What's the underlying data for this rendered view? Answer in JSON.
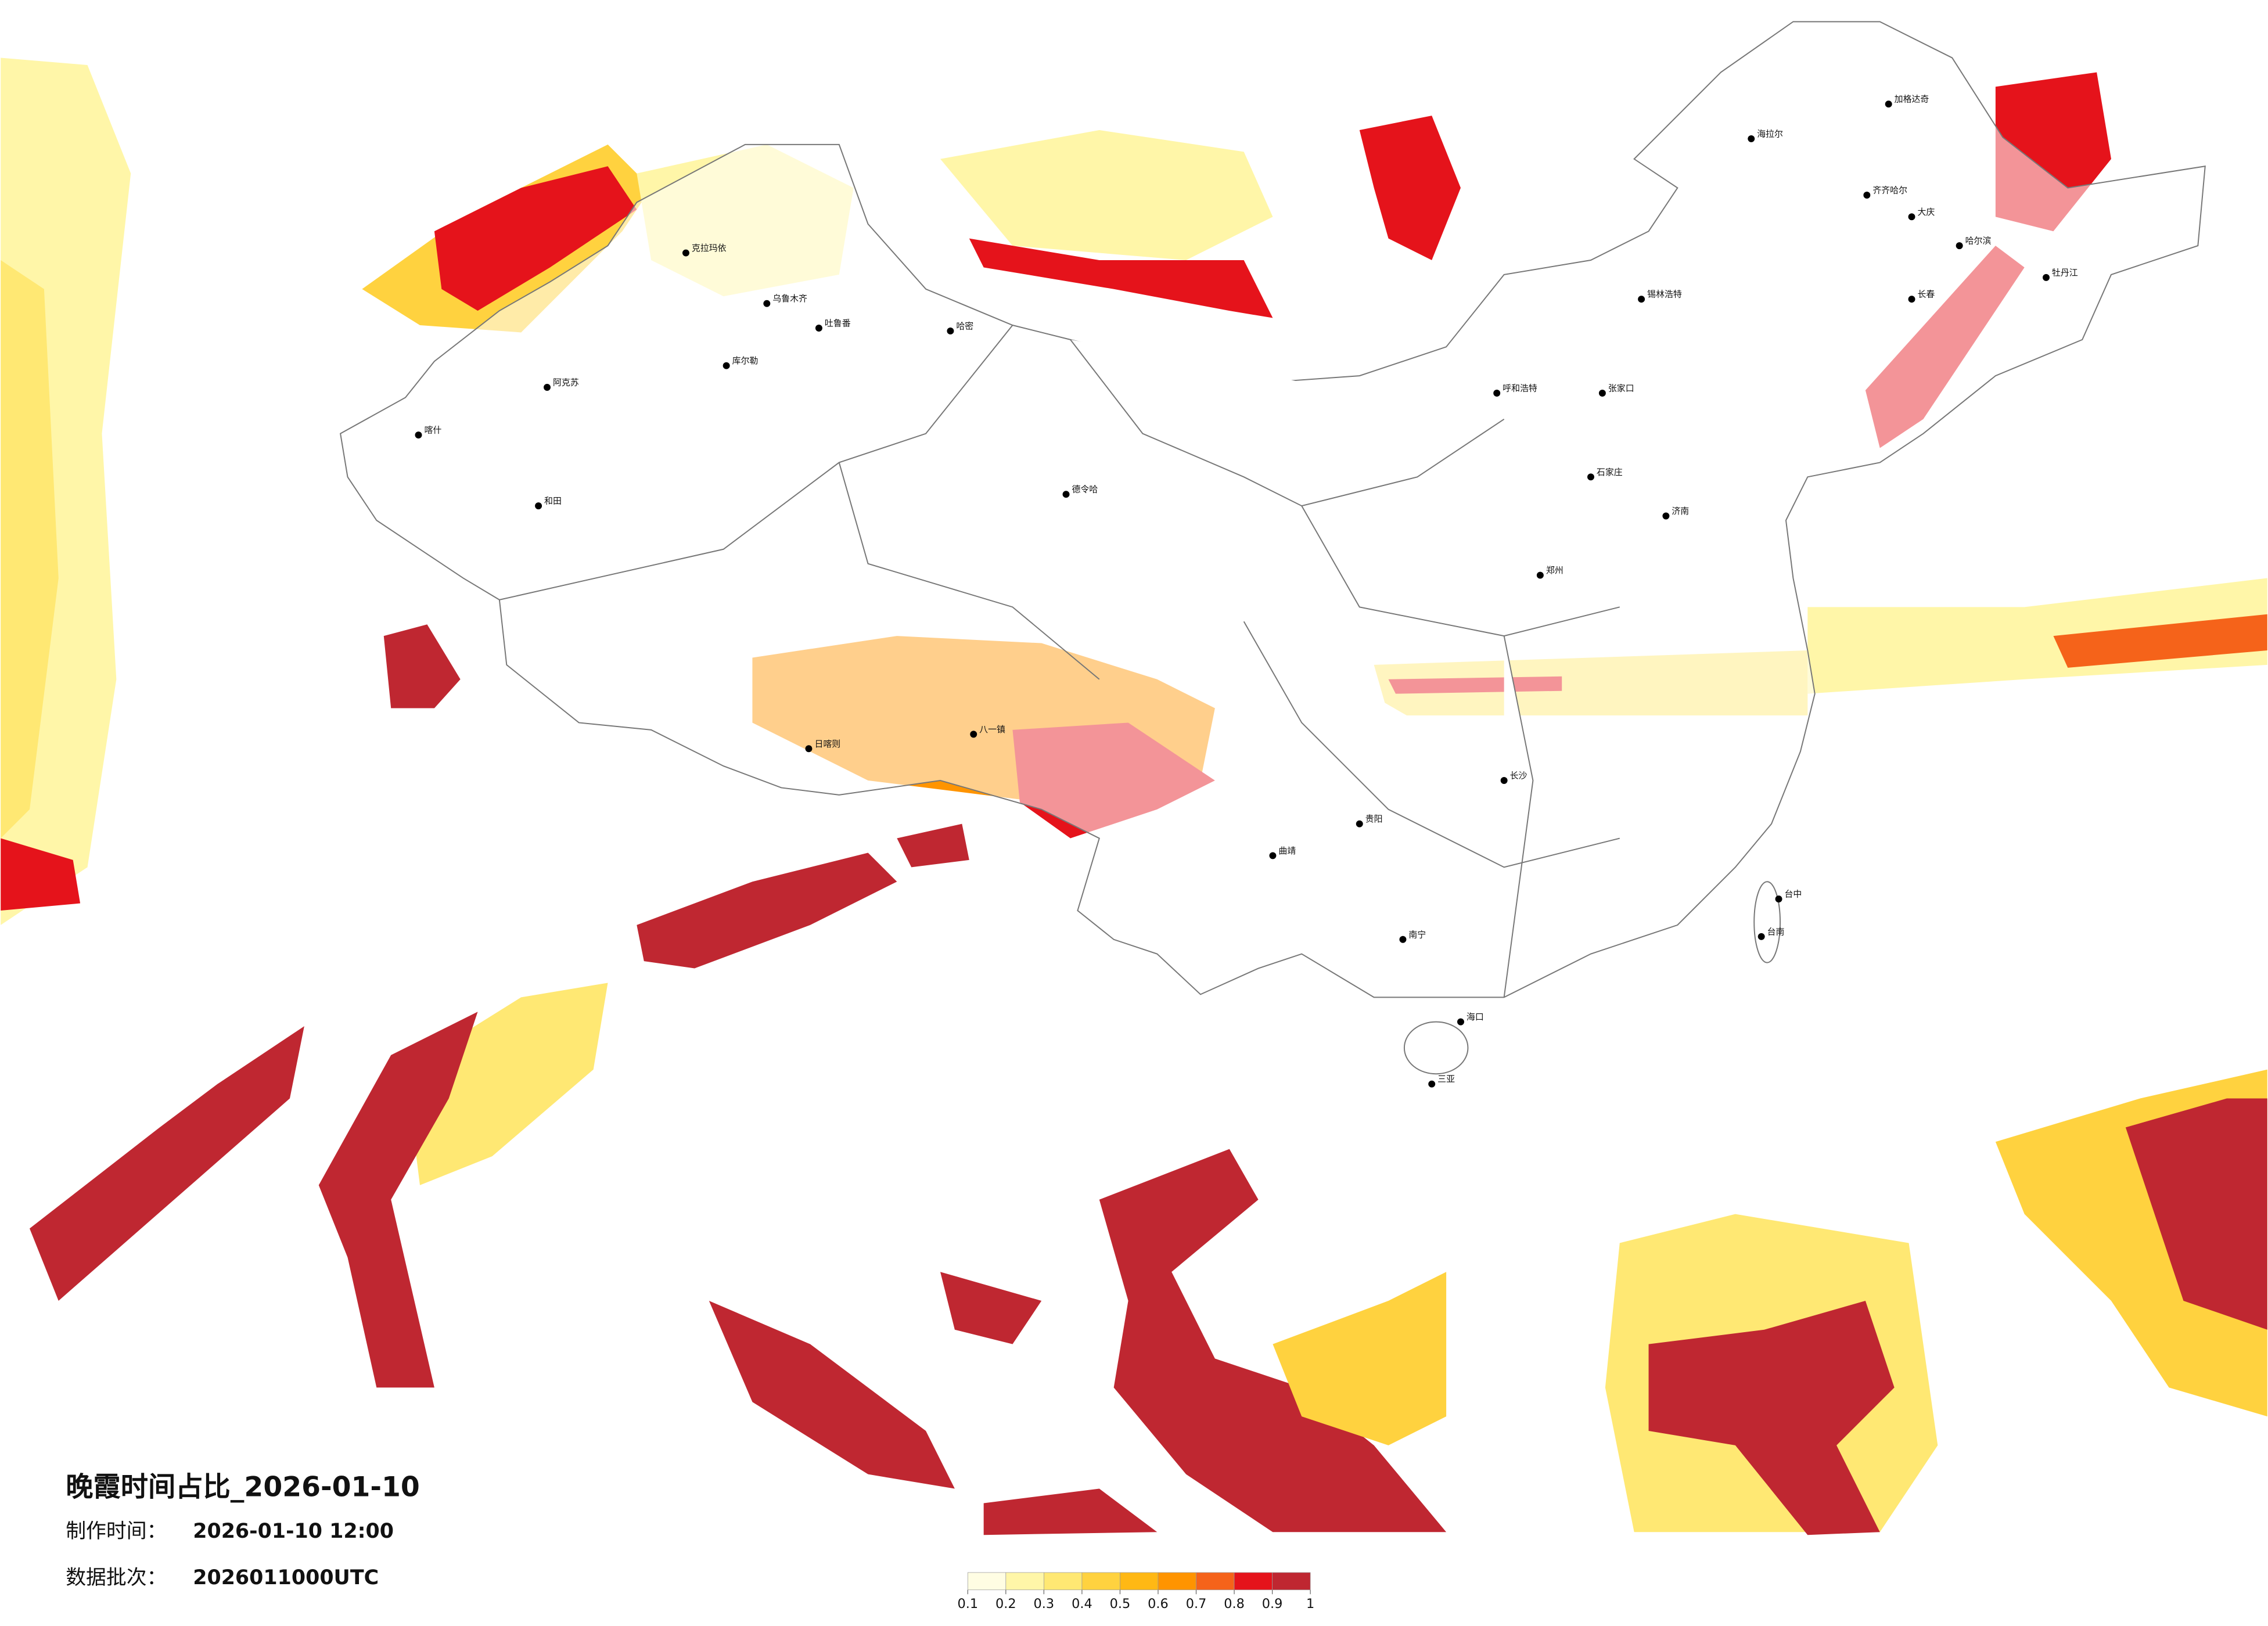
{
  "title": "晚霞时间占比_2026-01-10",
  "production_time": {
    "label": "制作时间：",
    "value": "2026-01-10 12:00"
  },
  "data_batch": {
    "label": "数据批次：",
    "value": "2026011000UTC"
  },
  "colorbar": {
    "ticks": [
      0.1,
      0.2,
      0.3,
      0.4,
      0.5,
      0.6,
      0.7,
      0.8,
      0.9,
      1
    ],
    "colors": [
      "#fffde3",
      "#fff6a8",
      "#ffe873",
      "#ffd23f",
      "#ffb814",
      "#ff9400",
      "#f5631a",
      "#e5131b",
      "#bf2731"
    ]
  },
  "cities": [
    "克拉玛依",
    "乌鲁木齐",
    "吐鲁番",
    "哈密",
    "库尔勒",
    "阿克苏",
    "喀什",
    "和田",
    "日喀则",
    "八一镇",
    "德令哈",
    "海拉尔",
    "加格达奇",
    "齐齐哈尔",
    "大庆",
    "哈尔滨",
    "牡丹江",
    "长春",
    "锡林浩特",
    "呼和浩特",
    "张家口",
    "石家庄",
    "济南",
    "郑州",
    "长沙",
    "贵阳",
    "曲靖",
    "南宁",
    "海口",
    "三亚",
    "台中",
    "台南"
  ]
}
